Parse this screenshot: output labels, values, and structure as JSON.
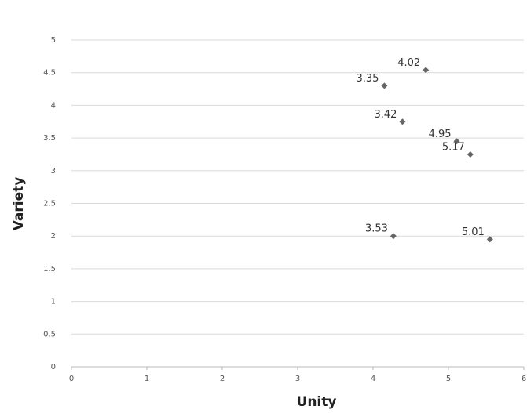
{
  "chart_data": {
    "type": "scatter",
    "x_label": "Unity",
    "y_label": "Variety",
    "x": [
      4.7,
      4.15,
      4.39,
      5.11,
      5.29,
      4.27,
      5.55
    ],
    "values": [
      4.54,
      4.3,
      3.75,
      3.45,
      3.25,
      2.0,
      1.95
    ],
    "labels": [
      4.02,
      3.35,
      3.42,
      4.95,
      5.17,
      3.53,
      5.01
    ],
    "color": "#666666",
    "xlim": [
      0,
      6
    ],
    "xticks": [
      0,
      1,
      2,
      3,
      4,
      5,
      6
    ],
    "ylim": [
      0,
      5
    ],
    "yticks": [
      0,
      0.5,
      1,
      1.5,
      2,
      2.5,
      3,
      3.5,
      4,
      4.5,
      5
    ],
    "grid": true
  }
}
